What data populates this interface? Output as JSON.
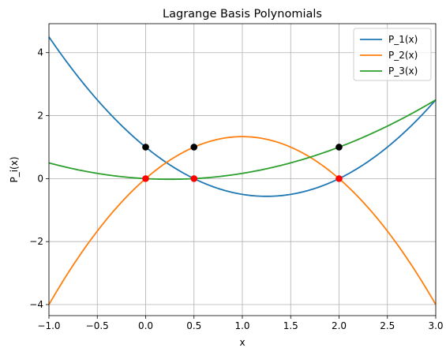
{
  "chart_data": {
    "type": "line",
    "title": "Lagrange Basis Polynomials",
    "xlabel": "x",
    "ylabel": "P_i(x)",
    "xlim": [
      -1.0,
      3.0
    ],
    "ylim": [
      -4.0,
      4.5
    ],
    "xticks": [
      "−1.0",
      "−0.5",
      "0.0",
      "0.5",
      "1.0",
      "1.5",
      "2.0",
      "2.5",
      "3.0"
    ],
    "yticks": [
      "−4",
      "−2",
      "0",
      "2",
      "4"
    ],
    "grid": true,
    "legend_placement": "top-right",
    "series": [
      {
        "name": "P_1(x)",
        "color": "#1f77b4",
        "x": [
          -1.0,
          -0.5,
          0.0,
          0.5,
          1.0,
          1.5,
          2.0,
          2.5,
          3.0
        ],
        "y": [
          4.5,
          2.5,
          1.0,
          0.0,
          -0.5,
          -0.5,
          0.0,
          1.0,
          2.5
        ]
      },
      {
        "name": "P_2(x)",
        "color": "#ff7f0e",
        "x": [
          -1.0,
          -0.5,
          0.0,
          0.5,
          1.0,
          1.5,
          2.0,
          2.5,
          3.0
        ],
        "y": [
          -4.0,
          -1.667,
          0.0,
          1.0,
          1.333,
          1.0,
          0.0,
          -1.667,
          -4.0
        ]
      },
      {
        "name": "P_3(x)",
        "color": "#2ca02c",
        "x": [
          -1.0,
          -0.5,
          0.0,
          0.5,
          1.0,
          1.5,
          2.0,
          2.5,
          3.0
        ],
        "y": [
          0.5,
          0.167,
          0.0,
          0.0,
          0.167,
          0.5,
          1.0,
          1.667,
          2.5
        ]
      }
    ],
    "nodes_x": [
      0.0,
      0.5,
      2.0
    ],
    "marker_points": [
      {
        "x": 0.0,
        "y": 1.0,
        "color": "#000000"
      },
      {
        "x": 0.5,
        "y": 1.0,
        "color": "#000000"
      },
      {
        "x": 2.0,
        "y": 1.0,
        "color": "#000000"
      },
      {
        "x": 0.0,
        "y": 0.0,
        "color": "#ff0000"
      },
      {
        "x": 0.5,
        "y": 0.0,
        "color": "#ff0000"
      },
      {
        "x": 2.0,
        "y": 0.0,
        "color": "#ff0000"
      }
    ]
  }
}
